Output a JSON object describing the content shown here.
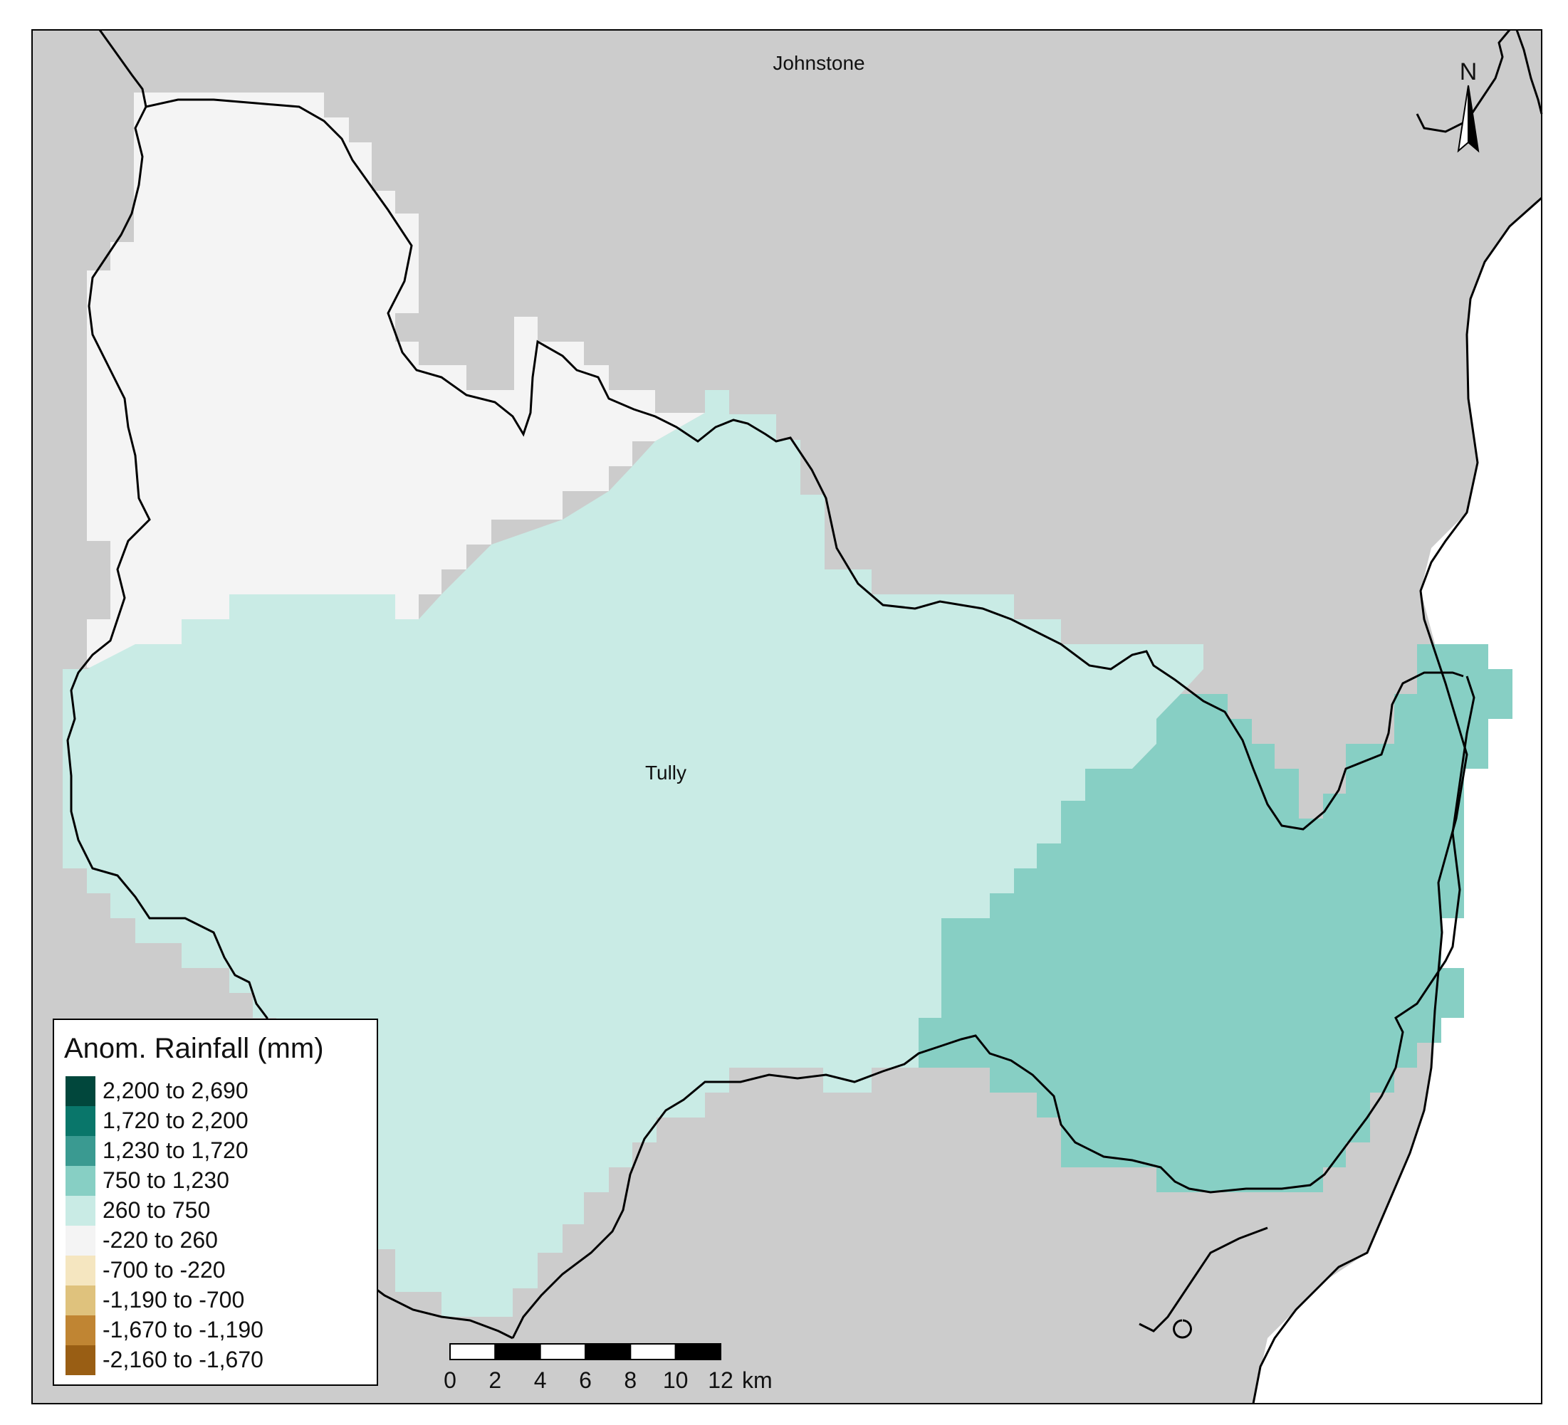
{
  "map": {
    "places": {
      "johnstone": "Johnstone",
      "tully": "Tully"
    },
    "north_arrow": {
      "label": "N"
    },
    "colors": {
      "land": "#cccccc",
      "sea": "#ffffff",
      "border": "#000000"
    }
  },
  "legend": {
    "title": "Anom. Rainfall (mm)",
    "items": [
      {
        "label": "2,200 to 2,690",
        "color": "#01473c"
      },
      {
        "label": "1,720 to 2,200",
        "color": "#09766a"
      },
      {
        "label": "1,230 to 1,720",
        "color": "#3a9a91"
      },
      {
        "label": "750 to 1,230",
        "color": "#87cfc4"
      },
      {
        "label": "260 to 750",
        "color": "#c9ebe5"
      },
      {
        "label": "-220 to 260",
        "color": "#f4f4f4"
      },
      {
        "label": "-700 to -220",
        "color": "#f5e6c0"
      },
      {
        "label": "-1,190 to -700",
        "color": "#dfc27d"
      },
      {
        "label": "-1,670 to -1,190",
        "color": "#c08533"
      },
      {
        "label": "-2,160 to -1,670",
        "color": "#995e14"
      }
    ]
  },
  "scale_bar": {
    "ticks": [
      "0",
      "2",
      "4",
      "6",
      "8",
      "10",
      "12"
    ],
    "unit": "km"
  }
}
